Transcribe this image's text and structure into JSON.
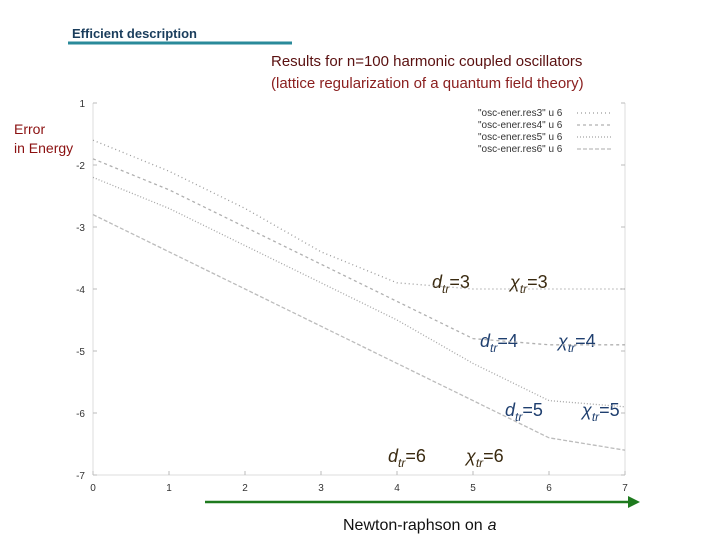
{
  "header": "Efficient description",
  "chart_data": {
    "type": "line",
    "title": "Results for n=100 harmonic coupled oscillators",
    "subtitle": "(lattice regularization of a quantum field theory)",
    "y_label": [
      "Error",
      "in Energy"
    ],
    "x_label": [
      "Newton-raphson on",
      "a"
    ],
    "x": [
      0,
      1,
      2,
      3,
      4,
      5,
      6,
      7
    ],
    "series": [
      {
        "name": "\"osc-ener.res3\" u 6",
        "color": "#9a9a9a",
        "values": [
          -1.6,
          -2.1,
          -2.7,
          -3.4,
          -3.9,
          -4.0,
          -4.0,
          -4.0
        ]
      },
      {
        "name": "\"osc-ener.res4\" u 6",
        "color": "#b0b0b0",
        "values": [
          -1.9,
          -2.4,
          -3.0,
          -3.6,
          -4.2,
          -4.8,
          -4.9,
          -4.9
        ]
      },
      {
        "name": "\"osc-ener.res5\" u 6",
        "color": "#a5a5a5",
        "values": [
          -2.2,
          -2.7,
          -3.3,
          -3.9,
          -4.5,
          -5.2,
          -5.8,
          -5.9
        ]
      },
      {
        "name": "\"osc-ener.res6\" u 6",
        "color": "#bcbcbc",
        "values": [
          -2.8,
          -3.4,
          -4.0,
          -4.6,
          -5.2,
          -5.8,
          -6.4,
          -6.6
        ]
      }
    ],
    "xlim": [
      0,
      7
    ],
    "xticks": [
      0,
      1,
      2,
      3,
      4,
      5,
      6,
      7
    ],
    "ylim": [
      -7,
      -1
    ],
    "yticks": [
      {
        "value": -1,
        "label": "1"
      },
      -2,
      -3,
      -4,
      -5,
      -6,
      -7
    ],
    "annotations": [
      {
        "parts": [
          "d",
          "tr",
          "=3"
        ]
      },
      {
        "parts": [
          "χ",
          "tr",
          "=3"
        ]
      },
      {
        "parts": [
          "d",
          "tr",
          "=4"
        ]
      },
      {
        "parts": [
          "χ",
          "tr",
          "=4"
        ]
      },
      {
        "parts": [
          "d",
          "tr",
          "=5"
        ]
      },
      {
        "parts": [
          "χ",
          "tr",
          "=5"
        ]
      },
      {
        "parts": [
          "d",
          "tr",
          "=6"
        ]
      },
      {
        "parts": [
          "χ",
          "tr",
          "=6"
        ]
      }
    ]
  }
}
